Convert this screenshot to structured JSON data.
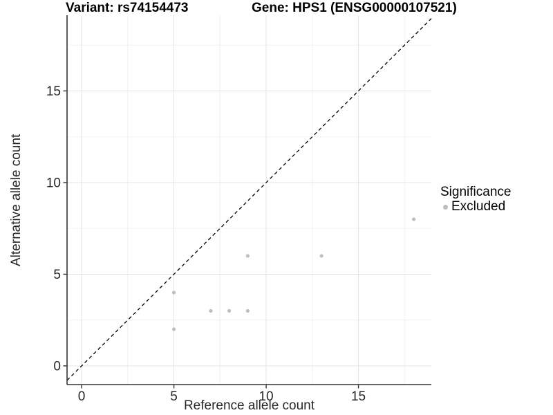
{
  "chart_data": {
    "type": "scatter",
    "title_left": "Variant: rs74154473",
    "title_right": "Gene: HPS1 (ENSG00000107521)",
    "xlabel": "Reference allele count",
    "ylabel": "Alternative allele count",
    "x_ticks": [
      0,
      5,
      10,
      15
    ],
    "y_ticks": [
      0,
      5,
      10,
      15
    ],
    "x_minor_ticks": [
      2.5,
      7.5,
      12.5,
      17.5
    ],
    "y_minor_ticks": [
      2.5,
      7.5,
      12.5,
      17.5
    ],
    "xlim": [
      -0.79,
      18.95
    ],
    "ylim": [
      -1.02,
      19.13
    ],
    "grid": "major and minor, light gray on white",
    "identity_line": {
      "equation": "y = x",
      "style": "dashed",
      "color": "#000000"
    },
    "series": [
      {
        "name": "Excluded",
        "color": "#bebebe",
        "points": [
          [
            5,
            2
          ],
          [
            5,
            4
          ],
          [
            7,
            3
          ],
          [
            8,
            3
          ],
          [
            9,
            3
          ],
          [
            9,
            6
          ],
          [
            13,
            6
          ],
          [
            18,
            8
          ]
        ]
      }
    ],
    "legend": {
      "position": "right",
      "title": "Significance",
      "items": [
        {
          "label": "Excluded",
          "color": "#bebebe"
        }
      ]
    }
  },
  "colors": {
    "background": "#ffffff",
    "grid_major": "#e4e4e4",
    "grid_minor": "#f2f2f2",
    "axis_line": "#333333",
    "tick_text": "#262626",
    "title_text": "#000000",
    "point": "#bebebe"
  }
}
